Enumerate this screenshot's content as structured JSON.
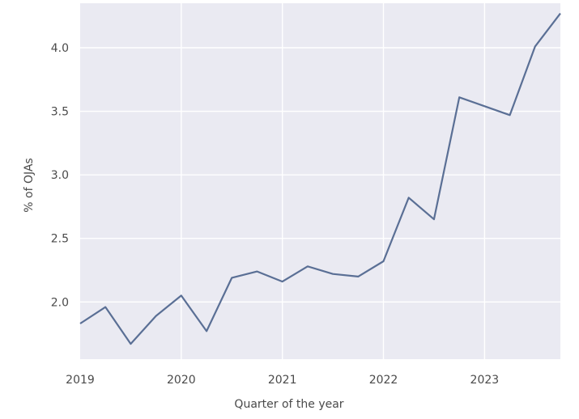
{
  "chart_data": {
    "type": "line",
    "title": "",
    "xlabel": "Quarter of the year",
    "ylabel": "% of OJAs",
    "xlim": [
      2019.0,
      2023.75
    ],
    "ylim": [
      1.55,
      4.35
    ],
    "grid": true,
    "x_tick_labels": [
      "2019",
      "2020",
      "2021",
      "2022",
      "2023"
    ],
    "x_tick_values": [
      2019,
      2020,
      2021,
      2022,
      2023
    ],
    "y_tick_labels": [
      "2.0",
      "2.5",
      "3.0",
      "3.5",
      "4.0"
    ],
    "y_tick_values": [
      2.0,
      2.5,
      3.0,
      3.5,
      4.0
    ],
    "series": [
      {
        "color": "#5a6f95",
        "x": [
          2019.0,
          2019.25,
          2019.5,
          2019.75,
          2020.0,
          2020.25,
          2020.5,
          2020.75,
          2021.0,
          2021.25,
          2021.5,
          2021.75,
          2022.0,
          2022.25,
          2022.5,
          2022.75,
          2023.0,
          2023.25,
          2023.5,
          2023.75
        ],
        "y": [
          1.83,
          1.96,
          1.67,
          1.89,
          2.05,
          1.77,
          2.19,
          2.24,
          2.16,
          2.28,
          2.22,
          2.2,
          2.32,
          2.82,
          2.65,
          3.61,
          3.54,
          3.47,
          4.01,
          4.27
        ]
      }
    ]
  }
}
